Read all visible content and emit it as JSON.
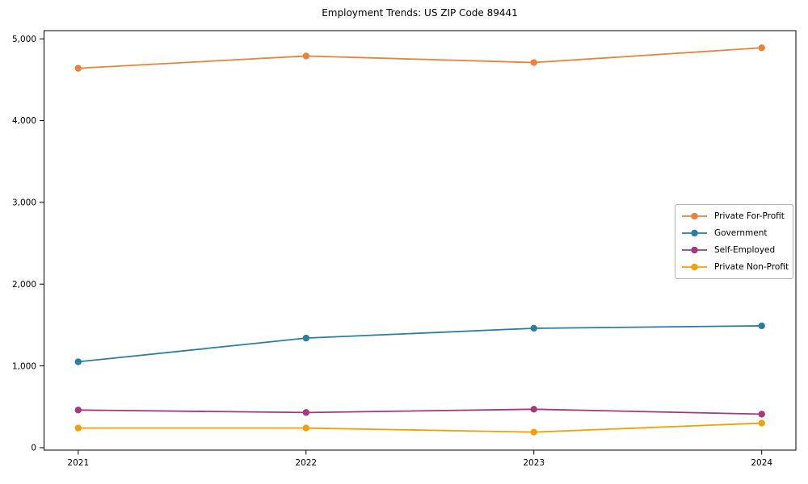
{
  "chart_data": {
    "type": "line",
    "title": "Employment Trends: US ZIP Code 89441",
    "x": [
      "2021",
      "2022",
      "2023",
      "2024"
    ],
    "series": [
      {
        "name": "Private For-Profit",
        "color": "#e8833c",
        "values": [
          4640,
          4790,
          4710,
          4890
        ]
      },
      {
        "name": "Government",
        "color": "#2c7da0",
        "values": [
          1050,
          1340,
          1460,
          1490
        ]
      },
      {
        "name": "Self-Employed",
        "color": "#a23a7d",
        "values": [
          460,
          430,
          470,
          410
        ]
      },
      {
        "name": "Private Non-Profit",
        "color": "#f2a104",
        "values": [
          240,
          240,
          190,
          300
        ]
      }
    ],
    "xlabel": "",
    "ylabel": "",
    "xtick_labels": [
      "2021",
      "2022",
      "2023",
      "2024"
    ],
    "yticks": [
      0,
      1000,
      2000,
      3000,
      4000,
      5000
    ],
    "ytick_labels": [
      "0",
      "1,000",
      "2,000",
      "3,000",
      "4,000",
      "5,000"
    ],
    "ylim": [
      -30,
      5100
    ],
    "grid": false,
    "legend": {
      "position": "center-right"
    },
    "axis_color": "#000000"
  }
}
